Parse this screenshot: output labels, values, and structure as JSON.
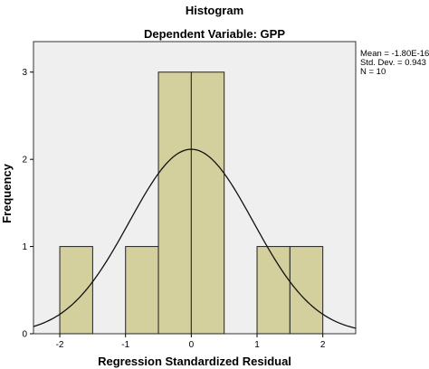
{
  "chart_data": {
    "type": "bar",
    "title": "Histogram",
    "subtitle": "Dependent Variable: GPP",
    "xlabel": "Regression Standardized Residual",
    "ylabel": "Frequency",
    "xlim": [
      -2.4,
      2.5
    ],
    "ylim": [
      0,
      3.35
    ],
    "x_ticks": [
      "-2",
      "-1",
      "0",
      "1",
      "2"
    ],
    "y_ticks": [
      "0",
      "1",
      "2",
      "3"
    ],
    "bins": [
      {
        "start": -2.0,
        "end": -1.5,
        "count": 1
      },
      {
        "start": -1.5,
        "end": -1.0,
        "count": 0
      },
      {
        "start": -1.0,
        "end": -0.5,
        "count": 1
      },
      {
        "start": -0.5,
        "end": 0.0,
        "count": 3
      },
      {
        "start": 0.0,
        "end": 0.5,
        "count": 3
      },
      {
        "start": 0.5,
        "end": 1.0,
        "count": 0
      },
      {
        "start": 1.0,
        "end": 1.5,
        "count": 1
      },
      {
        "start": 1.5,
        "end": 2.0,
        "count": 1
      }
    ],
    "curve": {
      "mean": 0.0,
      "std": 0.943,
      "n": 10,
      "bin_width": 0.5
    },
    "stats": [
      "Mean = -1.80E-16",
      "Std. Dev. = 0.943",
      "N = 10"
    ],
    "grid": false,
    "colors": {
      "plot_bg": "#efefef",
      "bar_fill": "#d3d09d",
      "bar_stroke": "#222222",
      "curve": "#111111"
    }
  }
}
